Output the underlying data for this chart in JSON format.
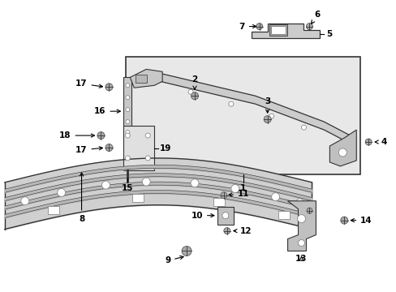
{
  "bg_color": "#ffffff",
  "fig_width": 4.89,
  "fig_height": 3.6,
  "dpi": 100,
  "line_color": "#333333",
  "part_fill": "#d8d8d8",
  "box_fill": "#e8e8e8",
  "label_fs": 7.5
}
